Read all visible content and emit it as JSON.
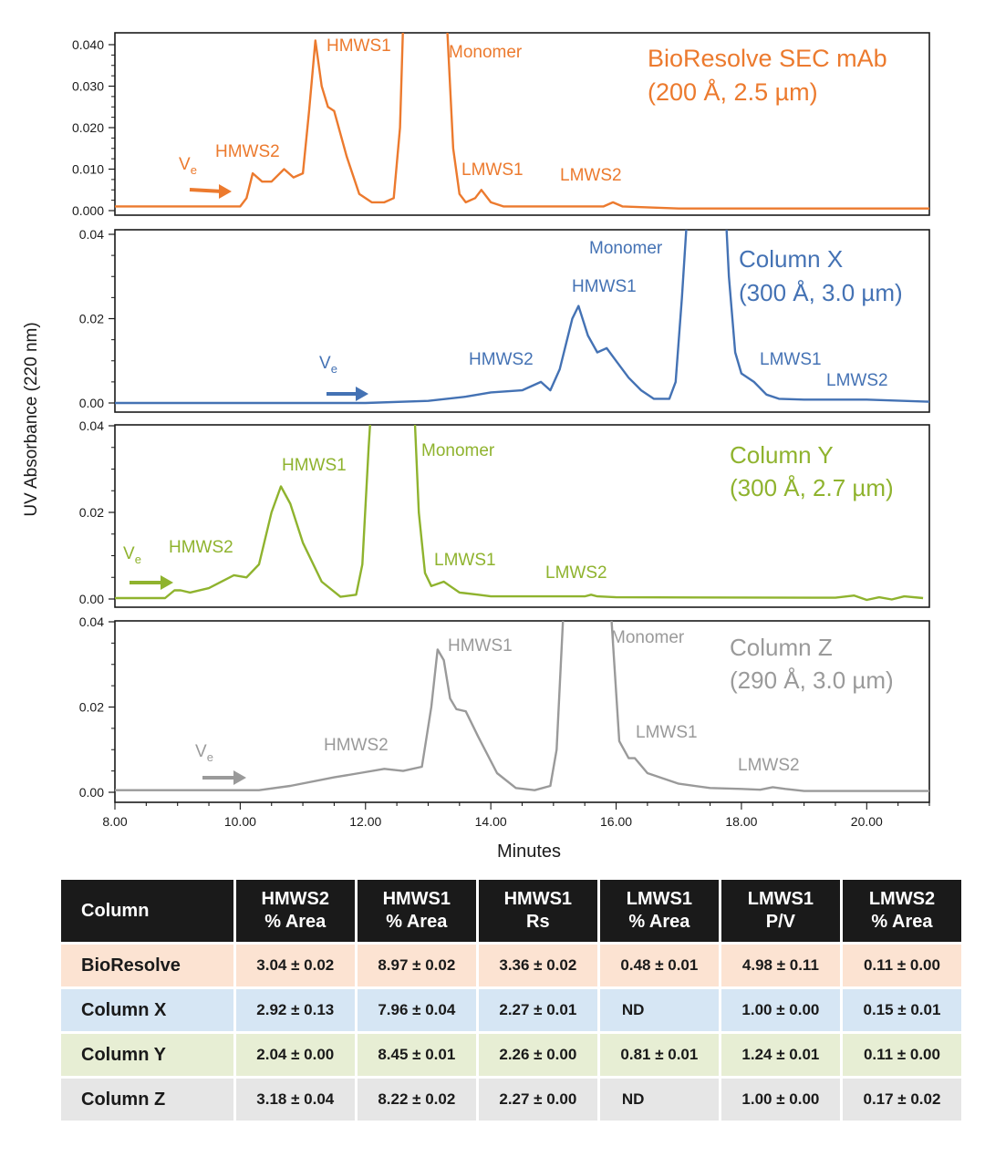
{
  "chart_data": {
    "type": "line",
    "xlabel": "Minutes",
    "ylabel": "UV Absorbance (220 nm)",
    "xlim": [
      8.0,
      21.0
    ],
    "x_ticks": [
      "8.00",
      "10.00",
      "12.00",
      "14.00",
      "16.00",
      "18.00",
      "20.00"
    ],
    "panels": [
      {
        "title": "BioResolve SEC mAb",
        "subtitle": "(200 Å, 2.5 µm)",
        "color": "#ec7a2e",
        "ylim": [
          0.0,
          0.045
        ],
        "y_ticks": [
          "0.000",
          "0.010",
          "0.020",
          "0.030",
          "0.040"
        ],
        "ve_label": "V",
        "ve_sub": "e",
        "series": [
          {
            "x": [
              8.0,
              10.0,
              10.1,
              10.2,
              10.35,
              10.5,
              10.7,
              10.85,
              11.0,
              11.1,
              11.2,
              11.3,
              11.4,
              11.5,
              11.7,
              11.9,
              12.1,
              12.3,
              12.45,
              12.55,
              12.6,
              12.7,
              13.2,
              13.3,
              13.4,
              13.5,
              13.6,
              13.75,
              13.85,
              14.0,
              14.2,
              15.0,
              15.8,
              15.95,
              16.1,
              17.0,
              18.0,
              21.0
            ],
            "y": [
              0.001,
              0.001,
              0.003,
              0.009,
              0.007,
              0.007,
              0.01,
              0.008,
              0.009,
              0.024,
              0.041,
              0.03,
              0.025,
              0.024,
              0.013,
              0.004,
              0.002,
              0.002,
              0.003,
              0.02,
              0.045,
              0.08,
              0.08,
              0.045,
              0.015,
              0.004,
              0.002,
              0.003,
              0.005,
              0.002,
              0.001,
              0.001,
              0.001,
              0.002,
              0.001,
              0.0005,
              0.0005,
              0.0005
            ]
          }
        ],
        "annotations": [
          {
            "text": "HMWS2",
            "x": 10.2,
            "y": 0.017
          },
          {
            "text": "HMWS1",
            "x": 11.5,
            "y": 0.042
          },
          {
            "text": "Monomer",
            "x": 13.6,
            "y": 0.04
          },
          {
            "text": "LMWS1",
            "x": 13.9,
            "y": 0.011
          },
          {
            "text": "LMWS2",
            "x": 15.6,
            "y": 0.009
          }
        ]
      },
      {
        "title": "Column X",
        "subtitle": "(300 Å, 3.0 µm)",
        "color": "#4472b4",
        "ylim": [
          0.0,
          0.04
        ],
        "y_ticks": [
          "0.00",
          "0.02",
          "0.04"
        ],
        "ve_label": "V",
        "ve_sub": "e",
        "series": [
          {
            "x": [
              8.0,
              12.0,
              13.0,
              13.6,
              14.0,
              14.5,
              14.8,
              14.95,
              15.1,
              15.3,
              15.4,
              15.55,
              15.7,
              15.85,
              16.0,
              16.2,
              16.4,
              16.6,
              16.85,
              16.95,
              17.05,
              17.2,
              17.7,
              17.8,
              17.9,
              18.0,
              18.2,
              18.4,
              18.6,
              19.0,
              20.0,
              21.0
            ],
            "y": [
              0.0,
              0.0,
              0.0005,
              0.0015,
              0.0025,
              0.003,
              0.005,
              0.003,
              0.008,
              0.02,
              0.023,
              0.016,
              0.012,
              0.013,
              0.01,
              0.006,
              0.003,
              0.001,
              0.001,
              0.005,
              0.025,
              0.06,
              0.06,
              0.03,
              0.012,
              0.007,
              0.005,
              0.002,
              0.001,
              0.0008,
              0.0008,
              0.0003
            ]
          }
        ],
        "annotations": [
          {
            "text": "Monomer",
            "x": 15.65,
            "y": 0.035
          },
          {
            "text": "HMWS1",
            "x": 15.3,
            "y": 0.026
          },
          {
            "text": "HMWS2",
            "x": 13.8,
            "y": 0.009
          },
          {
            "text": "LMWS1",
            "x": 18.3,
            "y": 0.009
          },
          {
            "text": "LMWS2",
            "x": 19.7,
            "y": 0.004
          }
        ]
      },
      {
        "title": "Column Y",
        "subtitle": "(300 Å, 2.7 µm)",
        "color": "#8fb32e",
        "ylim": [
          0.0,
          0.04
        ],
        "y_ticks": [
          "0.00",
          "0.02",
          "0.04"
        ],
        "ve_label": "V",
        "ve_sub": "e",
        "series": [
          {
            "x": [
              8.0,
              8.8,
              8.95,
              9.05,
              9.2,
              9.5,
              9.9,
              10.1,
              10.3,
              10.5,
              10.65,
              10.8,
              11.0,
              11.3,
              11.6,
              11.85,
              11.95,
              12.05,
              12.2,
              12.7,
              12.85,
              12.95,
              13.05,
              13.15,
              13.25,
              13.35,
              13.5,
              13.8,
              14.0,
              15.0,
              15.5,
              15.6,
              15.7,
              16.0,
              19.5,
              19.8,
              20.0,
              20.2,
              20.4,
              20.6,
              20.9
            ],
            "y": [
              0.0002,
              0.0002,
              0.002,
              0.002,
              0.0015,
              0.0025,
              0.0055,
              0.005,
              0.008,
              0.02,
              0.026,
              0.022,
              0.013,
              0.004,
              0.0005,
              0.001,
              0.008,
              0.035,
              0.07,
              0.07,
              0.02,
              0.006,
              0.003,
              0.0035,
              0.004,
              0.003,
              0.0015,
              0.001,
              0.0006,
              0.0006,
              0.0006,
              0.001,
              0.0006,
              0.0004,
              0.0003,
              0.0008,
              -0.0002,
              0.0004,
              -0.0001,
              0.0006,
              0.0002
            ]
          }
        ],
        "annotations": [
          {
            "text": "HMWS1",
            "x": 10.7,
            "y": 0.031
          },
          {
            "text": "Monomer",
            "x": 12.9,
            "y": 0.035
          },
          {
            "text": "HMWS2",
            "x": 9.2,
            "y": 0.011
          },
          {
            "text": "LMWS1",
            "x": 13.2,
            "y": 0.008
          },
          {
            "text": "LMWS2",
            "x": 14.8,
            "y": 0.005
          }
        ]
      },
      {
        "title": "Column Z",
        "subtitle": "(290 Å, 3.0 µm)",
        "color": "#9a9a9a",
        "ylim": [
          0.0,
          0.04
        ],
        "y_ticks": [
          "0.00",
          "0.02",
          "0.04"
        ],
        "ve_label": "V",
        "ve_sub": "e",
        "series": [
          {
            "x": [
              8.0,
              10.3,
              10.8,
              11.5,
              11.9,
              12.3,
              12.6,
              12.9,
              13.05,
              13.15,
              13.25,
              13.35,
              13.45,
              13.6,
              13.8,
              14.1,
              14.4,
              14.7,
              14.95,
              15.05,
              15.15,
              15.3,
              15.8,
              15.95,
              16.05,
              16.2,
              16.3,
              16.5,
              17.0,
              17.5,
              18.0,
              18.3,
              18.5,
              18.7,
              19.0,
              21.0
            ],
            "y": [
              0.0005,
              0.0005,
              0.0015,
              0.0035,
              0.0045,
              0.0055,
              0.005,
              0.006,
              0.02,
              0.0335,
              0.031,
              0.022,
              0.0195,
              0.019,
              0.013,
              0.0045,
              0.001,
              0.0005,
              0.0015,
              0.01,
              0.04,
              0.07,
              0.07,
              0.035,
              0.012,
              0.008,
              0.008,
              0.0045,
              0.002,
              0.001,
              0.0008,
              0.0006,
              0.0012,
              0.0008,
              0.0003,
              0.0003
            ]
          }
        ],
        "annotations": [
          {
            "text": "HMWS1",
            "x": 13.4,
            "y": 0.033
          },
          {
            "text": "Monomer",
            "x": 15.75,
            "y": 0.035
          },
          {
            "text": "HMWS2",
            "x": 11.1,
            "y": 0.011
          },
          {
            "text": "LMWS1",
            "x": 16.25,
            "y": 0.014
          },
          {
            "text": "LMWS2",
            "x": 17.9,
            "y": 0.0055
          }
        ]
      }
    ]
  },
  "table": {
    "header_fill": "#1a1a1a",
    "headers": [
      [
        "Column"
      ],
      [
        "HMWS2",
        "% Area"
      ],
      [
        "HMWS1",
        "% Area"
      ],
      [
        "HMWS1",
        "Rs"
      ],
      [
        "LMWS1",
        "% Area"
      ],
      [
        "LMWS1",
        "P/V"
      ],
      [
        "LMWS2",
        "% Area"
      ]
    ],
    "rows": [
      {
        "fill": "#fce3d2",
        "cells": [
          "BioResolve",
          "3.04 ± 0.02",
          "8.97 ± 0.02",
          "3.36 ± 0.02",
          "0.48 ± 0.01",
          "4.98 ± 0.11",
          "0.11 ± 0.00"
        ]
      },
      {
        "fill": "#d6e6f4",
        "cells": [
          "Column X",
          "2.92 ± 0.13",
          "7.96 ± 0.04",
          "2.27 ± 0.01",
          "ND",
          "1.00 ± 0.00",
          "0.15 ± 0.01"
        ]
      },
      {
        "fill": "#e7eed4",
        "cells": [
          "Column Y",
          "2.04 ± 0.00",
          "8.45 ± 0.01",
          "2.26 ± 0.00",
          "0.81 ± 0.01",
          "1.24 ± 0.01",
          "0.11 ± 0.00"
        ]
      },
      {
        "fill": "#e6e6e6",
        "cells": [
          "Column Z",
          "3.18 ± 0.04",
          "8.22 ± 0.02",
          "2.27 ± 0.00",
          "ND",
          "1.00 ± 0.00",
          "0.17 ± 0.02"
        ]
      }
    ]
  }
}
